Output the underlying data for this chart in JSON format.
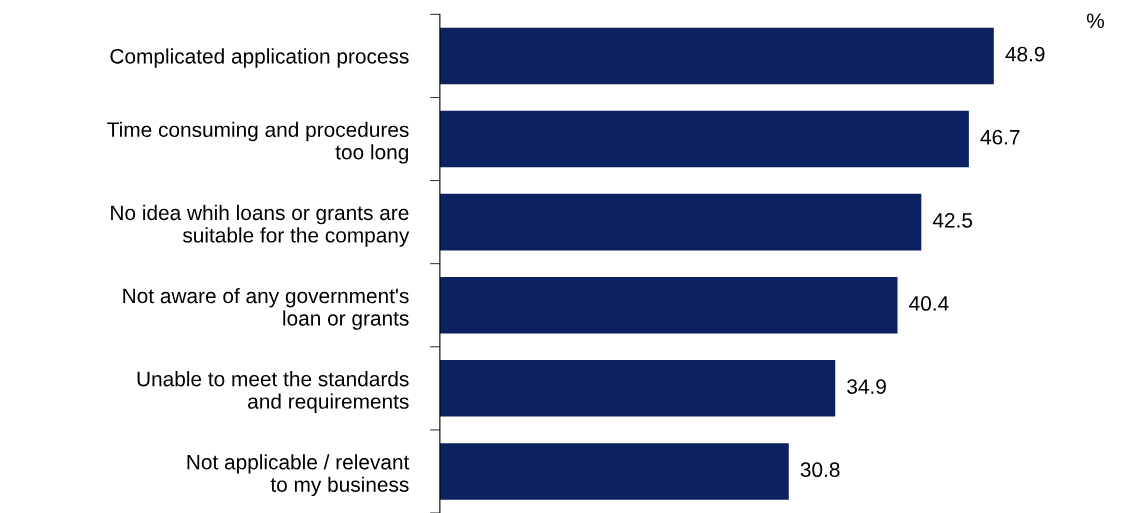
{
  "chart_data": {
    "type": "bar",
    "orientation": "horizontal",
    "categories": [
      "Complicated application process",
      "Time consuming and procedures\ntoo long",
      "No idea whih loans or grants are\nsuitable for the company",
      "Not aware of any government's\nloan or grants",
      "Unable to meet the standards\nand requirements",
      "Not applicable / relevant\nto my business"
    ],
    "values": [
      48.9,
      46.7,
      42.5,
      40.4,
      34.9,
      30.8
    ],
    "color": "#0c2160",
    "data_labels": true,
    "grid": false,
    "legend": false,
    "annotations": [
      "%"
    ]
  }
}
